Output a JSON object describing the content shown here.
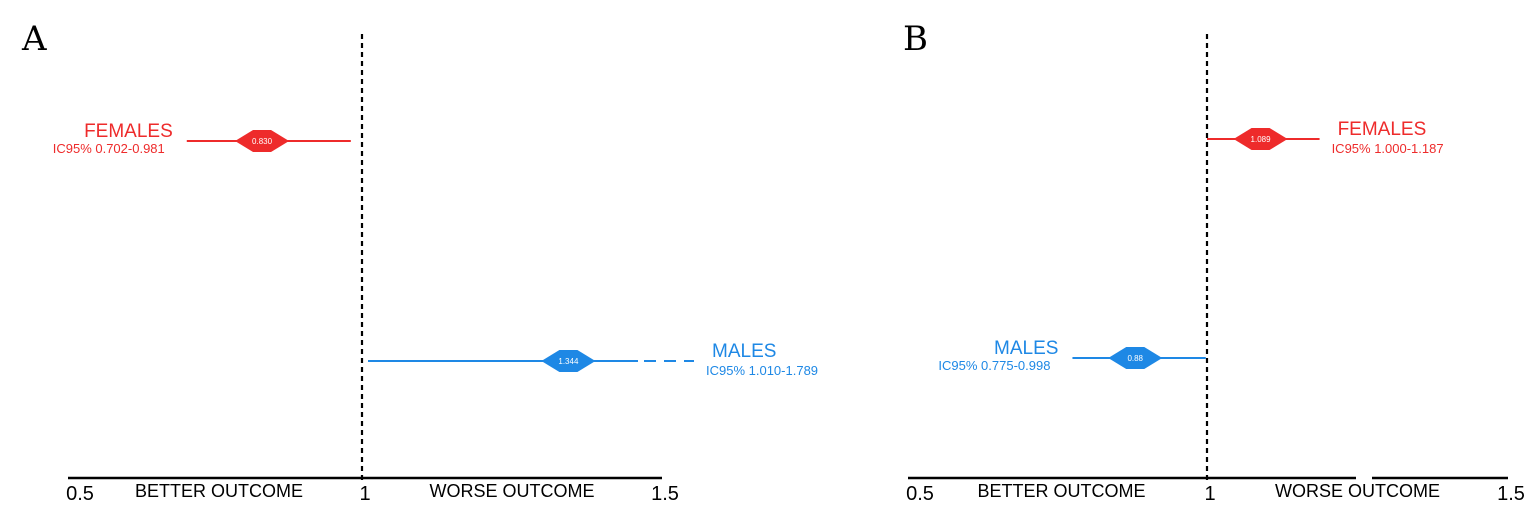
{
  "colors": {
    "females": "#ee2b2b",
    "males": "#1e88e5",
    "axis": "#000000"
  },
  "chart_data": [
    {
      "panel": "A",
      "type": "forest",
      "xlim": [
        0.5,
        1.5
      ],
      "reference": 1,
      "ticks": [
        "0.5",
        "1",
        "1.5"
      ],
      "outcome_labels": {
        "left": "BETTER OUTCOME",
        "right": "WORSE OUTCOME"
      },
      "series": [
        {
          "name": "FEMALES",
          "ci_label": "IC95% 0.702-0.981",
          "estimate": 0.83,
          "estimate_label": "0.830",
          "lower": 0.702,
          "upper": 0.981,
          "color": "#ee2b2b"
        },
        {
          "name": "MALES",
          "ci_label": "IC95% 1.010-1.789",
          "estimate": 1.344,
          "estimate_label": "1.344",
          "lower": 1.01,
          "upper": 1.789,
          "color": "#1e88e5",
          "truncated_upper": true
        }
      ]
    },
    {
      "panel": "B",
      "type": "forest",
      "xlim": [
        0.5,
        1.5
      ],
      "reference": 1,
      "ticks": [
        "0.5",
        "1",
        "1.5"
      ],
      "outcome_labels": {
        "left": "BETTER OUTCOME",
        "right": "WORSE OUTCOME"
      },
      "series": [
        {
          "name": "FEMALES",
          "ci_label": "IC95% 1.000-1.187",
          "estimate": 1.089,
          "estimate_label": "1.089",
          "lower": 1.0,
          "upper": 1.187,
          "color": "#ee2b2b"
        },
        {
          "name": "MALES",
          "ci_label": "IC95% 0.775-0.998",
          "estimate": 0.88,
          "estimate_label": "0.88",
          "lower": 0.775,
          "upper": 0.998,
          "color": "#1e88e5"
        }
      ]
    }
  ]
}
